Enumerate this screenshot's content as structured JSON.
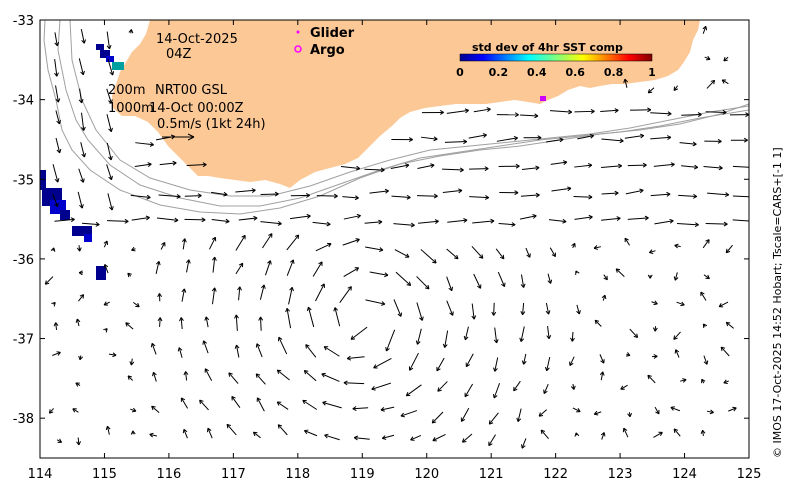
{
  "map": {
    "lon_range": [
      114,
      125
    ],
    "lat_range": [
      -38.5,
      -33
    ],
    "x_ticks": [
      "114",
      "115",
      "116",
      "117",
      "118",
      "119",
      "120",
      "121",
      "122",
      "123",
      "124",
      "125"
    ],
    "y_ticks": [
      "-33",
      "-34",
      "-35",
      "-36",
      "-37",
      "-38"
    ],
    "land_color": "#fcc896",
    "water_color": "#ffffff",
    "contour_color": "#a0a0a0",
    "eddy_center": [
      119.0,
      -36.75
    ]
  },
  "annotations": {
    "date": "14-Oct-2025",
    "time": "04Z",
    "depth1": "200m",
    "product": "NRT00 GSL",
    "depth2": "1000m",
    "valid": "14-Oct 00:00Z",
    "scale": "0.5m/s (1kt 24h)"
  },
  "legend": {
    "glider_label": "Glider",
    "glider_color": "#ff00ff",
    "argo_label": "Argo",
    "argo_color": "#ff00ff"
  },
  "colorbar": {
    "title": "std dev of 4hr SST comp",
    "ticks": [
      "0",
      "0.2",
      "0.4",
      "0.6",
      "0.8",
      "1"
    ]
  },
  "credit": "© IMOS 17-Oct-2025 14:52 Hobart; Tscale=CARS+[-1 1]"
}
